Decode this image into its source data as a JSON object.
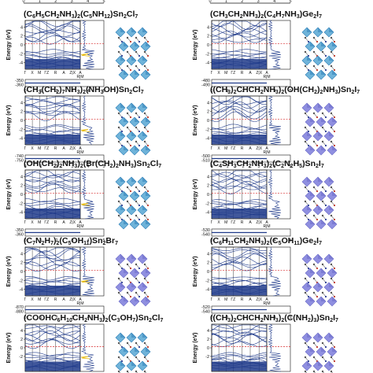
{
  "top_axis_ticks": [
    "0",
    "1",
    "2",
    "3",
    "4",
    "5"
  ],
  "k_labels": [
    "Γ",
    "X",
    "M",
    "ΓZ",
    "R",
    "A",
    "Z|X",
    "A"
  ],
  "k_sub": "R|M",
  "y_label": "Energy (eV)",
  "panels": [
    {
      "title": "(C6H5CH2NH3)2(C5NH12)Sn2Cl7",
      "y_ticks": [
        "4",
        "2",
        "0",
        "-2",
        "-4"
      ],
      "bottom_ticks": [
        "-350",
        "-360"
      ],
      "x_ticks": [
        "0",
        "1",
        "2",
        "3",
        "4",
        "5"
      ]
    },
    {
      "title": "(CH3CH2NH3)2(C4H7NH3)Ge2I7",
      "y_ticks": [
        "4",
        "2",
        "0",
        "-2",
        "-4"
      ],
      "bottom_ticks": [
        "-480",
        "-490"
      ],
      "x_ticks": [
        "0",
        "1",
        "2",
        "3",
        "4",
        "5"
      ]
    },
    {
      "title": "(CH3(CH2)7NH3)2(NH3OH)Sn2Cl7",
      "y_ticks": [
        "4",
        "2",
        "0",
        "-2",
        "-4"
      ],
      "bottom_ticks": [
        "-740",
        "-750"
      ],
      "x_ticks": [
        "0",
        "1",
        "2",
        "3",
        "4",
        "5"
      ]
    },
    {
      "title": "((CH3)2CHCH2NH3)2(OH(CH2)2NH3)Sn2I7",
      "y_ticks": [
        "4",
        "2",
        "0",
        "-2",
        "-4"
      ],
      "bottom_ticks": [
        "-500",
        "-510"
      ],
      "x_ticks": [
        "0",
        "1",
        "2",
        "3",
        "4",
        "5"
      ]
    },
    {
      "title": "(OH(CH2)2NH3)2(Br(CH2)2NH3)Sn2Cl7",
      "y_ticks": [
        "4",
        "2",
        "0",
        "-2",
        "-4"
      ],
      "bottom_ticks": [
        "-350",
        "-360"
      ],
      "x_ticks": [
        "0",
        "1",
        "2",
        "3",
        "4",
        "5"
      ]
    },
    {
      "title": "(C4SH3CH2NH3)2(C2N2H5)Sn2I7",
      "y_ticks": [
        "4",
        "2",
        "0",
        "-2",
        "-4"
      ],
      "bottom_ticks": [
        "-530",
        "-540"
      ],
      "x_ticks": [
        "0",
        "1",
        "2",
        "3",
        "4",
        "5"
      ]
    },
    {
      "title": "(C7N2H7)2(C5OH11)Sn2Br7",
      "y_ticks": [
        "4",
        "2",
        "0",
        "-2",
        "-4"
      ],
      "bottom_ticks": [
        "-870",
        "-880"
      ],
      "x_ticks": [
        "0",
        "1",
        "2",
        "3",
        "4",
        "5"
      ]
    },
    {
      "title": "(C6H11CH2NH3)2(C5OH11)Ge2I7",
      "y_ticks": [
        "4",
        "2",
        "0",
        "-2",
        "-4"
      ],
      "bottom_ticks": [
        "-520",
        "-540"
      ],
      "x_ticks": [
        "0",
        "1",
        "2",
        "3",
        "4",
        "5"
      ]
    },
    {
      "title": "(COOHC6H10CH2NH3)2(C3OH7)Sn2Cl7",
      "y_ticks": [
        "4",
        "2",
        "0",
        "-2"
      ],
      "bottom_ticks": [],
      "x_ticks": []
    },
    {
      "title": "((CH3)2CHCH2NH3)2(C(NH2)3)Sn2I7",
      "y_ticks": [
        "4",
        "2",
        "0",
        "-2"
      ],
      "bottom_ticks": [],
      "x_ticks": []
    }
  ],
  "colors": {
    "bands": "#1f3a8a",
    "fermi": "#d62728",
    "dos": "#1f3a8a",
    "octahedron_light": "#6fb3d9",
    "octahedron_dark": "#2f7fb8",
    "octahedron_purple": "#8f8fe0"
  }
}
